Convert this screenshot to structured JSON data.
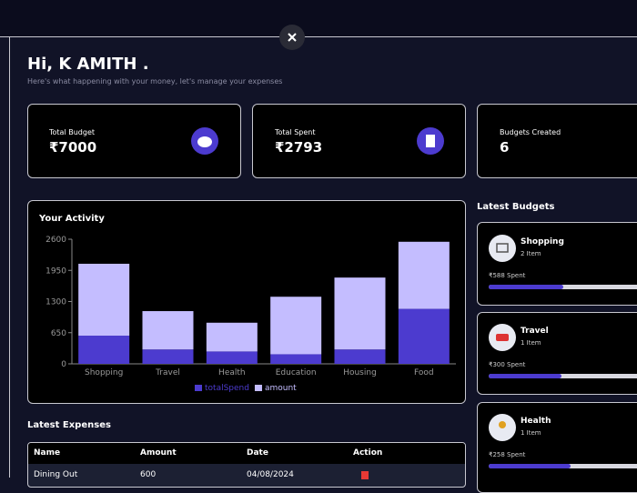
{
  "header": {
    "greeting": "Hi, K AMITH .",
    "subtitle": "Here's what happening with your money, let's manage your expenses"
  },
  "cards": [
    {
      "label": "Total Budget",
      "value": "₹7000"
    },
    {
      "label": "Total Spent",
      "value": "₹2793"
    },
    {
      "label": "Budgets Created",
      "value": "6"
    }
  ],
  "chart_data": {
    "type": "bar",
    "stacked": true,
    "title": "Your Activity",
    "categories": [
      "Shopping",
      "Travel",
      "Health",
      "Education",
      "Housing",
      "Food"
    ],
    "series": [
      {
        "name": "totalSpend",
        "color": "#4c3bcf",
        "values": [
          588,
          300,
          258,
          200,
          300,
          1147
        ]
      },
      {
        "name": "amount",
        "color": "#c4bdff",
        "values": [
          1500,
          800,
          600,
          1200,
          1500,
          1400
        ]
      }
    ],
    "ylim": [
      0,
      2600
    ],
    "yticks": [
      0,
      650,
      1300,
      1950,
      2600
    ]
  },
  "latest_budgets": {
    "title": "Latest Budgets",
    "items": [
      {
        "name": "Shopping",
        "items": "2 Item",
        "spent": "₹588 Spent"
      },
      {
        "name": "Travel",
        "items": "1 Item",
        "spent": "₹300 Spent"
      },
      {
        "name": "Health",
        "items": "1 Item",
        "spent": "₹258 Spent"
      }
    ]
  },
  "latest_expenses": {
    "title": "Latest Expenses",
    "columns": [
      "Name",
      "Amount",
      "Date",
      "Action"
    ],
    "rows": [
      [
        "Dining Out",
        "600",
        "04/08/2024"
      ]
    ]
  }
}
